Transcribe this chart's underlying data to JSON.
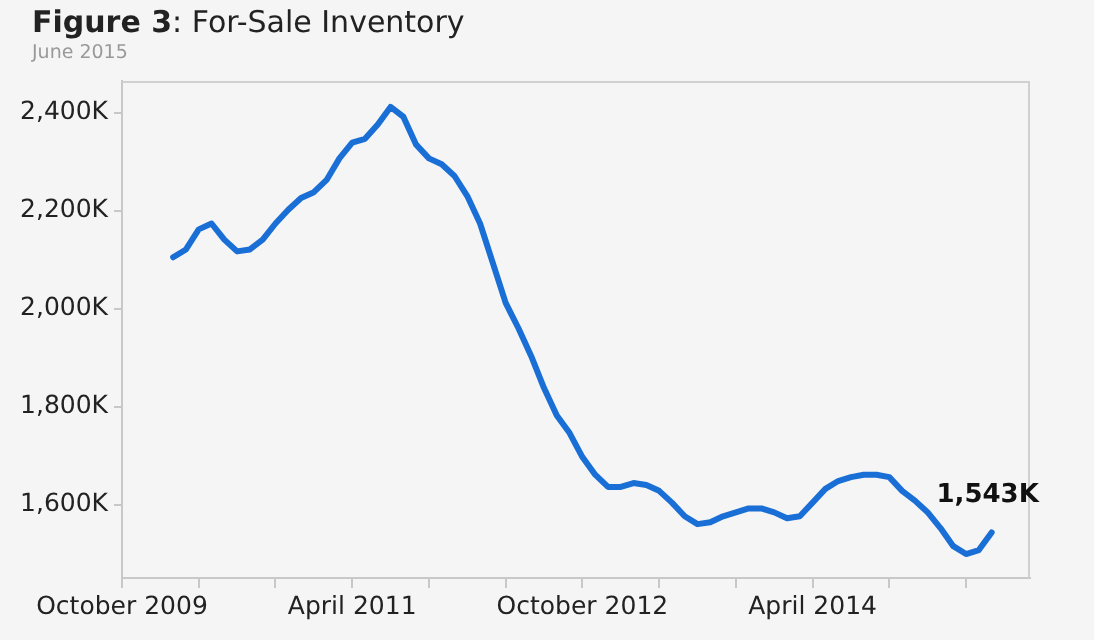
{
  "chart_data": {
    "type": "line",
    "title": "Figure 3: For-Sale Inventory",
    "subtitle": "June 2015",
    "x": [
      "2010-02",
      "2010-03",
      "2010-04",
      "2010-05",
      "2010-06",
      "2010-07",
      "2010-08",
      "2010-09",
      "2010-10",
      "2010-11",
      "2010-12",
      "2011-01",
      "2011-02",
      "2011-03",
      "2011-04",
      "2011-05",
      "2011-06",
      "2011-07",
      "2011-08",
      "2011-09",
      "2011-10",
      "2011-11",
      "2011-12",
      "2012-01",
      "2012-02",
      "2012-03",
      "2012-04",
      "2012-05",
      "2012-06",
      "2012-07",
      "2012-08",
      "2012-09",
      "2012-10",
      "2012-11",
      "2012-12",
      "2013-01",
      "2013-02",
      "2013-03",
      "2013-04",
      "2013-05",
      "2013-06",
      "2013-07",
      "2013-08",
      "2013-09",
      "2013-10",
      "2013-11",
      "2013-12",
      "2014-01",
      "2014-02",
      "2014-03",
      "2014-04",
      "2014-05",
      "2014-06",
      "2014-07",
      "2014-08",
      "2014-09",
      "2014-10",
      "2014-11",
      "2014-12",
      "2015-01",
      "2015-02",
      "2015-03",
      "2015-04",
      "2015-05",
      "2015-06"
    ],
    "series": [
      {
        "color": "#1a6fd6",
        "values": [
          2105,
          2121,
          2162,
          2174,
          2141,
          2117,
          2121,
          2141,
          2174,
          2202,
          2226,
          2238,
          2263,
          2307,
          2339,
          2347,
          2376,
          2412,
          2392,
          2335,
          2307,
          2295,
          2271,
          2230,
          2174,
          2093,
          2012,
          1960,
          1903,
          1838,
          1782,
          1746,
          1697,
          1661,
          1636,
          1636,
          1644,
          1640,
          1628,
          1604,
          1576,
          1560,
          1564,
          1576,
          1584,
          1592,
          1592,
          1584,
          1572,
          1576,
          1604,
          1632,
          1648,
          1656,
          1661,
          1661,
          1656,
          1628,
          1608,
          1584,
          1552,
          1515,
          1499,
          1507,
          1543
        ]
      }
    ],
    "xlim": [
      "2009-10",
      "2015-09"
    ],
    "xticks": [
      {
        "value": "2009-10",
        "label": "October 2009"
      },
      {
        "value": "2010-04",
        "label": null
      },
      {
        "value": "2010-10",
        "label": null
      },
      {
        "value": "2011-04",
        "label": "April 2011"
      },
      {
        "value": "2011-10",
        "label": null
      },
      {
        "value": "2012-04",
        "label": null
      },
      {
        "value": "2012-10",
        "label": "October 2012"
      },
      {
        "value": "2013-04",
        "label": null
      },
      {
        "value": "2013-10",
        "label": null
      },
      {
        "value": "2014-04",
        "label": "April 2014"
      },
      {
        "value": "2014-10",
        "label": null
      },
      {
        "value": "2015-04",
        "label": null
      }
    ],
    "ylim": [
      1450,
      2465
    ],
    "yticks": [
      {
        "value": 1600,
        "label": "1,600K"
      },
      {
        "value": 1800,
        "label": "1,800K"
      },
      {
        "value": 2000,
        "label": "2,000K"
      },
      {
        "value": 2200,
        "label": "2,200K"
      },
      {
        "value": 2400,
        "label": "2,400K"
      }
    ],
    "annotations": [
      {
        "text": "1,543K",
        "x": "2015-06",
        "y": 1543
      }
    ],
    "legend": false,
    "marker": "none",
    "line_style": "solid"
  }
}
